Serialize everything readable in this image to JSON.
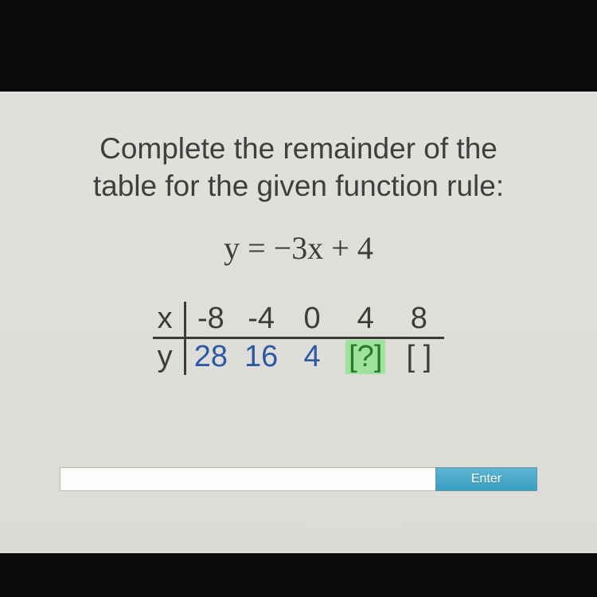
{
  "prompt": {
    "line1": "Complete the remainder of the",
    "line2": "table for the given function rule:",
    "color": "#3f3f3e",
    "fontsize": 37
  },
  "equation": {
    "text": "y = −3x + 4",
    "color": "#3d3d3c",
    "fontsize": 40
  },
  "function_table": {
    "type": "table",
    "row_labels": [
      "x",
      "y"
    ],
    "columns": [
      {
        "x": "-8",
        "y": "28",
        "y_style": "known"
      },
      {
        "x": "-4",
        "y": "16",
        "y_style": "known"
      },
      {
        "x": "0",
        "y": "4",
        "y_style": "known"
      },
      {
        "x": "4",
        "y": "[?]",
        "y_style": "active"
      },
      {
        "x": "8",
        "y": "[ ]",
        "y_style": "blank"
      }
    ],
    "colors": {
      "text": "#3c3c3b",
      "known_y": "#2c5aa0",
      "active_bg": "#9de29d",
      "active_fg": "#2a7a2a",
      "rule": "#3a3a39"
    },
    "fontsize": 38
  },
  "input": {
    "value": "",
    "enter_label": "Enter",
    "enter_bg": "#3a9fc0",
    "enter_fg": "#ffffff",
    "field_bg": "#fcfcfa"
  },
  "page": {
    "content_bg": "#dedcD8",
    "letterbox_color": "#0a0a0a"
  }
}
